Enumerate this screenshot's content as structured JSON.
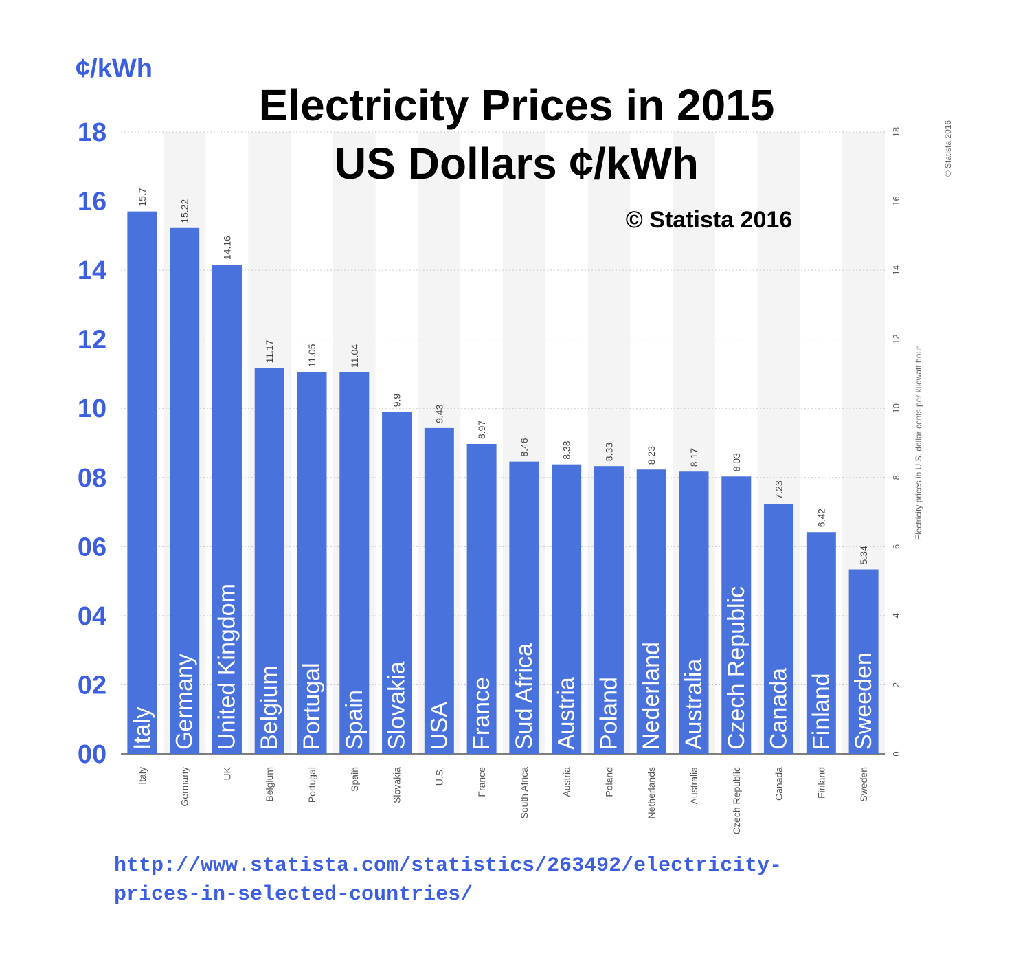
{
  "header": {
    "unit_label": "¢/kWh",
    "title_line1": "Electricity Prices in 2015",
    "title_line2": "US Dollars ¢/kWh",
    "copyright": "© Statista 2016"
  },
  "side_credit": "© Statista 2016",
  "source": {
    "line1": "http://www.statista.com/statistics/263492/electricity-",
    "line2": "prices-in-selected-countries/"
  },
  "colors": {
    "bar": "#4a72dc",
    "accent_text": "#3b5fe0",
    "band": "#f4f4f4",
    "grid": "#c8c8c8"
  },
  "chart_data": {
    "type": "bar",
    "title": "Electricity Prices in 2015 US Dollars ¢/kWh",
    "ylabel": "¢/kWh",
    "right_ylabel": "Electricity prices in U.S. dollar cents per kilowatt hour",
    "ylim": [
      0,
      18
    ],
    "grid": true,
    "left_tick_labels": [
      "00",
      "02",
      "04",
      "06",
      "08",
      "10",
      "12",
      "14",
      "16",
      "18"
    ],
    "right_tick_labels": [
      "0",
      "2",
      "4",
      "6",
      "8",
      "10",
      "12",
      "14",
      "16",
      "18"
    ],
    "categories": [
      "Italy",
      "Germany",
      "UK",
      "Belgium",
      "Portugal",
      "Spain",
      "Slovakia",
      "U.S.",
      "France",
      "South Africa",
      "Austria",
      "Poland",
      "Netherlands",
      "Australia",
      "Czech Republic",
      "Canada",
      "Finland",
      "Sweden"
    ],
    "bar_labels": [
      "Italy",
      "Germany",
      "United Kingdom",
      "Belgium",
      "Portugal",
      "Spain",
      "Slovakia",
      "USA",
      "France",
      "Sud Africa",
      "Austria",
      "Poland",
      "Nederland",
      "Australia",
      "Czech Republic",
      "Canada",
      "Finland",
      "Sweeden"
    ],
    "value_labels": [
      "15.7",
      "15.22",
      "14.16",
      "11.17",
      "11.05",
      "11.04",
      "9.9",
      "9.43",
      "8.97",
      "8.46",
      "8.38",
      "8.33",
      "8.23",
      "8.17",
      "8.03",
      "7.23",
      "6.42",
      "5.34"
    ],
    "values": [
      15.7,
      15.22,
      14.16,
      11.17,
      11.05,
      11.04,
      9.9,
      9.43,
      8.97,
      8.46,
      8.38,
      8.33,
      8.23,
      8.17,
      8.03,
      7.23,
      6.42,
      5.34
    ]
  }
}
